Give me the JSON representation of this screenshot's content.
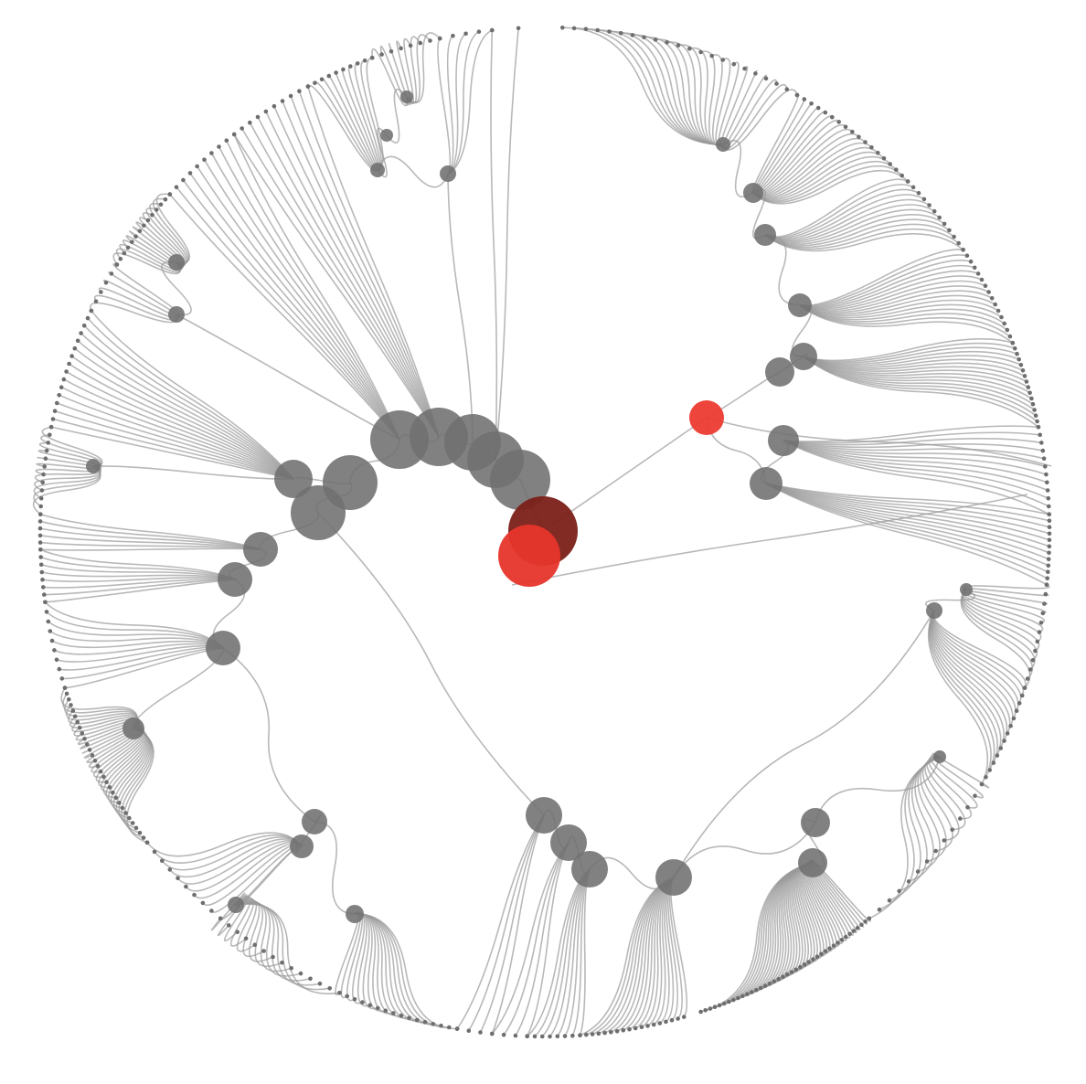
{
  "colors": {
    "background": "#ffffff",
    "link": "#9a9a9a",
    "node": "#707070",
    "leaf": "#6e6e6e",
    "highlight_primary": "#e6352b",
    "highlight_dark": "#7a2018",
    "highlight_small": "#ec3b30"
  },
  "diagram": {
    "type": "radial-cluster-tree",
    "labels_visible": false,
    "highlighted_nodes": 3
  }
}
